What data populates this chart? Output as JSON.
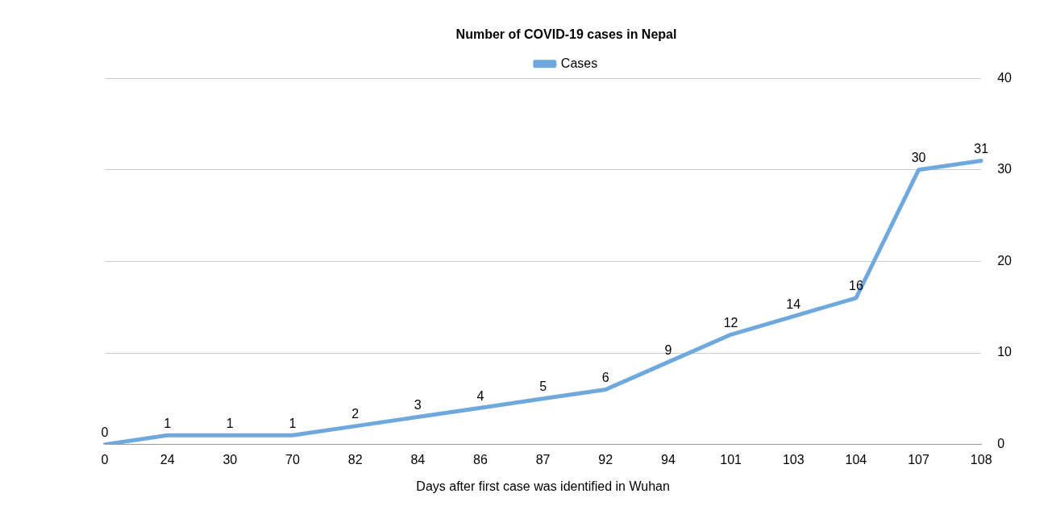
{
  "chart_data": {
    "type": "line",
    "title": "Number of COVID-19 cases in Nepal",
    "xlabel": "Days after first case was identified in Wuhan",
    "categories": [
      "0",
      "24",
      "30",
      "70",
      "82",
      "84",
      "86",
      "87",
      "92",
      "94",
      "101",
      "103",
      "104",
      "107",
      "108"
    ],
    "series": [
      {
        "name": "Cases",
        "color": "#6fa8dc",
        "values": [
          0,
          1,
          1,
          1,
          2,
          3,
          4,
          5,
          6,
          9,
          12,
          14,
          16,
          30,
          31
        ]
      }
    ],
    "ylim": [
      0,
      40
    ],
    "yticks": [
      0,
      10,
      20,
      30,
      40
    ],
    "grid": "y",
    "legend": "top",
    "marker": "none",
    "line_style": "solid",
    "data_labels": true
  }
}
